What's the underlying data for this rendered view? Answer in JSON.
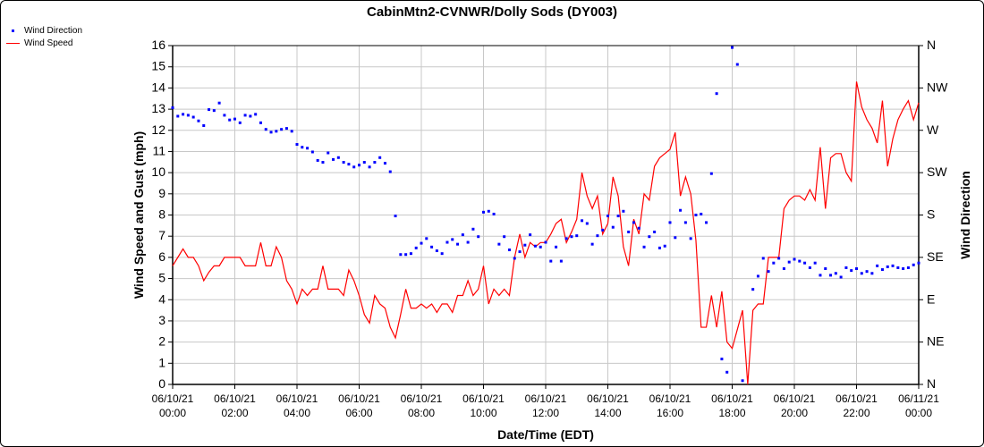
{
  "chart_data": {
    "type": "line",
    "title": "CabinMtn2-CVNWR/Dolly Sods (DY003)",
    "xlabel": "Date/Time (EDT)",
    "ylabel": "Wind Speed and Gust (mph)",
    "y2label": "Wind Direction",
    "ylim": [
      0,
      16
    ],
    "y2lim": [
      0,
      360
    ],
    "yticks": [
      "0",
      "1",
      "2",
      "3",
      "4",
      "5",
      "6",
      "7",
      "8",
      "9",
      "10",
      "11",
      "12",
      "13",
      "14",
      "15",
      "16"
    ],
    "y2ticks": [
      "N",
      "NE",
      "E",
      "SE",
      "S",
      "SW",
      "W",
      "NW",
      "N"
    ],
    "xticks": [
      [
        "06/10/21",
        "00:00"
      ],
      [
        "06/10/21",
        "02:00"
      ],
      [
        "06/10/21",
        "04:00"
      ],
      [
        "06/10/21",
        "06:00"
      ],
      [
        "06/10/21",
        "08:00"
      ],
      [
        "06/10/21",
        "10:00"
      ],
      [
        "06/10/21",
        "12:00"
      ],
      [
        "06/10/21",
        "14:00"
      ],
      [
        "06/10/21",
        "16:00"
      ],
      [
        "06/10/21",
        "18:00"
      ],
      [
        "06/10/21",
        "20:00"
      ],
      [
        "06/10/21",
        "22:00"
      ],
      [
        "06/11/21",
        "00:00"
      ]
    ],
    "x_interval_minutes": 10,
    "grid": true,
    "legend_position": "top-left",
    "series": [
      {
        "name": "Wind Direction",
        "kind": "scatter",
        "color": "#0000ff",
        "axis": "right",
        "values": [
          294,
          285,
          287,
          286,
          284,
          280,
          275,
          292,
          291,
          299,
          286,
          281,
          282,
          278,
          286,
          285,
          287,
          278,
          271,
          268,
          269,
          271,
          272,
          269,
          255,
          252,
          251,
          247,
          238,
          236,
          246,
          239,
          241,
          236,
          234,
          231,
          233,
          236,
          231,
          236,
          241,
          235,
          226,
          179,
          138,
          138,
          139,
          145,
          150,
          155,
          146,
          142,
          139,
          151,
          154,
          149,
          159,
          151,
          165,
          157,
          183,
          184,
          181,
          149,
          157,
          143,
          134,
          141,
          148,
          159,
          147,
          146,
          151,
          131,
          146,
          131,
          155,
          157,
          158,
          174,
          171,
          149,
          158,
          164,
          179,
          167,
          179,
          184,
          162,
          172,
          166,
          146,
          157,
          162,
          145,
          147,
          172,
          156,
          185,
          172,
          155,
          180,
          181,
          172,
          224,
          309,
          27,
          13,
          358,
          340,
          4,
          null,
          101,
          115,
          134,
          120,
          129,
          134,
          123,
          130,
          133,
          131,
          129,
          124,
          129,
          116,
          123,
          116,
          118,
          114,
          124,
          121,
          123,
          118,
          120,
          118,
          126,
          122,
          125,
          126,
          124,
          123,
          124,
          127,
          129
        ]
      },
      {
        "name": "Wind Speed",
        "kind": "line",
        "color": "#ff0000",
        "axis": "left",
        "values": [
          5.6,
          6.0,
          6.4,
          6.0,
          6.0,
          5.6,
          4.9,
          5.3,
          5.6,
          5.6,
          6.0,
          6.0,
          6.0,
          6.0,
          5.6,
          5.6,
          5.6,
          6.7,
          5.6,
          5.6,
          6.5,
          6.0,
          4.9,
          4.5,
          3.8,
          4.5,
          4.2,
          4.5,
          4.5,
          5.6,
          4.5,
          4.5,
          4.5,
          4.2,
          5.4,
          4.9,
          4.2,
          3.3,
          2.9,
          4.2,
          3.8,
          3.6,
          2.7,
          2.2,
          3.3,
          4.5,
          3.6,
          3.6,
          3.8,
          3.6,
          3.8,
          3.4,
          3.8,
          3.8,
          3.4,
          4.2,
          4.2,
          4.9,
          4.2,
          4.5,
          5.6,
          3.8,
          4.5,
          4.2,
          4.5,
          4.2,
          6.0,
          7.1,
          6.0,
          6.7,
          6.5,
          6.7,
          6.7,
          7.1,
          7.6,
          7.8,
          6.7,
          7.2,
          7.8,
          10.0,
          8.9,
          8.3,
          8.9,
          7.1,
          7.6,
          9.8,
          8.9,
          6.5,
          5.6,
          7.8,
          7.1,
          9.0,
          8.7,
          10.3,
          10.7,
          10.9,
          11.1,
          11.9,
          8.9,
          9.8,
          9.0,
          6.8,
          2.7,
          2.7,
          4.2,
          2.7,
          4.4,
          2.0,
          1.7,
          2.6,
          3.5,
          0,
          3.5,
          3.8,
          3.8,
          6.0,
          6.0,
          6.0,
          8.3,
          8.7,
          8.9,
          8.9,
          8.7,
          9.2,
          8.7,
          11.2,
          8.3,
          10.7,
          10.9,
          10.9,
          10.0,
          9.6,
          14.3,
          13.1,
          12.5,
          12.1,
          11.4,
          13.4,
          10.3,
          11.6,
          12.5,
          13.0,
          13.4,
          12.5,
          13.3
        ]
      }
    ]
  }
}
